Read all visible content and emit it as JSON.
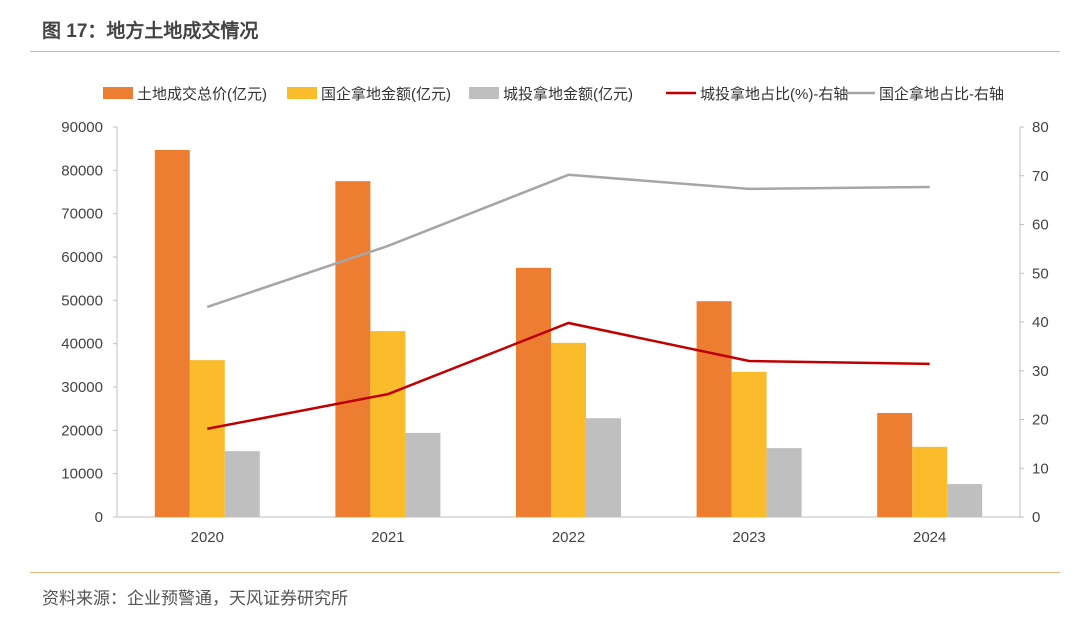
{
  "title": "图 17：地方土地成交情况",
  "source": "资料来源：企业预警通，天风证券研究所",
  "chart_data": {
    "type": "bar",
    "categories": [
      "2020",
      "2021",
      "2022",
      "2023",
      "2024"
    ],
    "series": [
      {
        "name": "土地成交总价(亿元)",
        "kind": "bar",
        "axis": "left",
        "color": "#ed7d31",
        "values": [
          84700,
          77500,
          57500,
          49800,
          24000
        ]
      },
      {
        "name": "国企拿地金额(亿元)",
        "kind": "bar",
        "axis": "left",
        "color": "#fbbc2c",
        "values": [
          36200,
          42900,
          40200,
          33500,
          16200
        ]
      },
      {
        "name": "城投拿地金额(亿元)",
        "kind": "bar",
        "axis": "left",
        "color": "#bfbfbf",
        "values": [
          15200,
          19400,
          22800,
          15900,
          7600
        ]
      },
      {
        "name": "城投拿地占比(%)-右轴",
        "kind": "line",
        "axis": "right",
        "color": "#c00000",
        "values": [
          18.1,
          25.2,
          39.8,
          32.0,
          31.4
        ]
      },
      {
        "name": "国企拿地占比-右轴",
        "kind": "line",
        "axis": "right",
        "color": "#a6a6a6",
        "values": [
          43.1,
          55.6,
          70.2,
          67.3,
          67.7
        ]
      }
    ],
    "ylim": [
      0,
      90000
    ],
    "yticks": [
      "0",
      "10000",
      "20000",
      "30000",
      "40000",
      "50000",
      "60000",
      "70000",
      "80000",
      "90000"
    ],
    "y2lim": [
      0,
      80
    ],
    "y2ticks": [
      "0",
      "10",
      "20",
      "30",
      "40",
      "50",
      "60",
      "70",
      "80"
    ],
    "legend": "top",
    "grid": false
  }
}
